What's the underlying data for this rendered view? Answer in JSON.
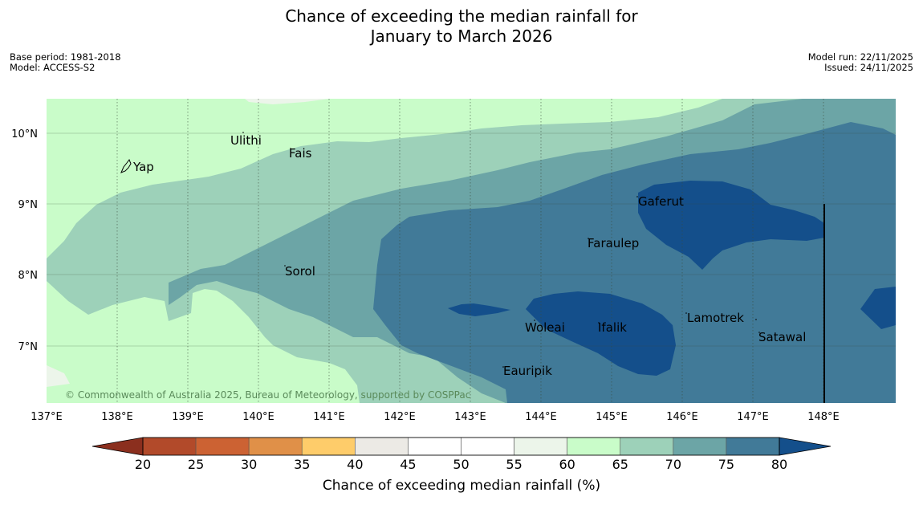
{
  "title_line1": "Chance of exceeding the median rainfall for",
  "title_line2": "January to March 2026",
  "meta_left": [
    "Base period: 1981-2018",
    "Model: ACCESS-S2"
  ],
  "meta_right": [
    "Model run: 22/11/2025",
    "Issued: 24/11/2025"
  ],
  "copyright": "© Commonwealth of Australia 2025, Bureau of Meteorology, supported by COSPPac",
  "lat_labels": [
    "10°N",
    "9°N",
    "8°N",
    "7°N"
  ],
  "lon_labels": [
    "137°E",
    "138°E",
    "139°E",
    "140°E",
    "141°E",
    "142°E",
    "143°E",
    "144°E",
    "145°E",
    "146°E",
    "147°E",
    "148°E"
  ],
  "places": [
    "Ulithi",
    "Fais",
    "Yap",
    "Gaferut",
    "Faraulep",
    "Sorol",
    "Lamotrek",
    "Woleai",
    "Ifalik",
    "Satawal",
    "Eauripik"
  ],
  "colorbar": {
    "title": "Chance of exceeding median rainfall (%)",
    "ticks": [
      "20",
      "25",
      "30",
      "35",
      "40",
      "45",
      "50",
      "55",
      "60",
      "65",
      "70",
      "75",
      "80"
    ],
    "colors": [
      "#8b2f1e",
      "#b24a2a",
      "#cc6233",
      "#e09048",
      "#fecc6a",
      "#eceae5",
      "#ffffff",
      "#ffffff",
      "#ecf5ea",
      "#c9fcc9",
      "#9dd1b9",
      "#6ca5a6",
      "#417a98",
      "#144f8b"
    ]
  },
  "map_colors": {
    "c60_65": "#c9fcc9",
    "c65_70": "#9dd1b9",
    "c70_75": "#6ca5a6",
    "c75_80": "#417a98",
    "c80": "#144f8b",
    "c55_60": "#ecf5ea"
  }
}
